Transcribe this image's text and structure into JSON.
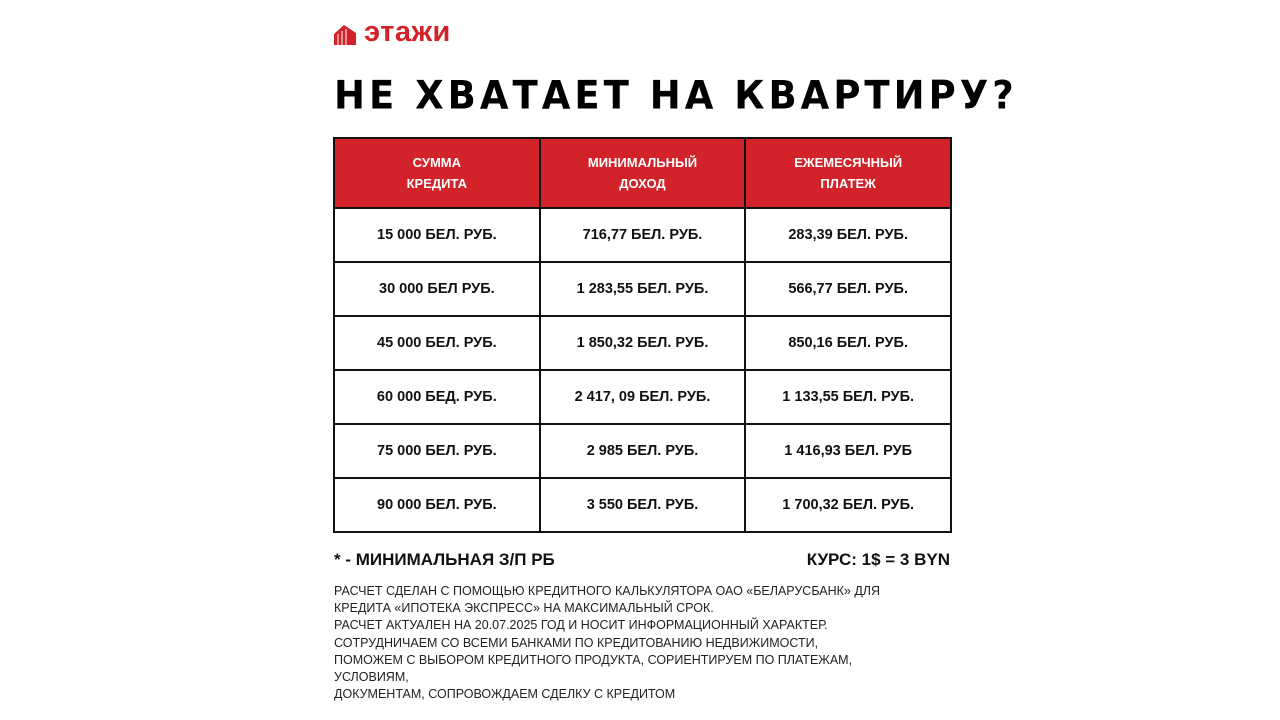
{
  "brand": {
    "name": "этажи",
    "color": "#d2232a",
    "icon": "building-logo-icon"
  },
  "title": "НЕ ХВАТАЕТ НА КВАРТИРУ?",
  "table": {
    "headers": [
      [
        "СУММА",
        "КРЕДИТА"
      ],
      [
        "МИНИМАЛЬНЫЙ",
        "ДОХОД"
      ],
      [
        "ЕЖЕМЕСЯЧНЫЙ",
        "ПЛАТЕЖ"
      ]
    ],
    "rows": [
      [
        "15 000 БЕЛ. РУБ.",
        "716,77 БЕЛ. РУБ.",
        "283,39 БЕЛ. РУБ."
      ],
      [
        "30 000 БЕЛ РУБ.",
        "1 283,55 БЕЛ. РУБ.",
        "566,77 БЕЛ. РУБ."
      ],
      [
        "45 000 БЕЛ. РУБ.",
        "1 850,32 БЕЛ. РУБ.",
        "850,16 БЕЛ. РУБ."
      ],
      [
        "60 000 БЕД. РУБ.",
        "2 417, 09 БЕЛ. РУБ.",
        "1 133,55 БЕЛ. РУБ."
      ],
      [
        "75 000 БЕЛ. РУБ.",
        "2 985 БЕЛ. РУБ.",
        "1 416,93 БЕЛ. РУБ"
      ],
      [
        "90 000 БЕЛ. РУБ.",
        "3 550 БЕЛ. РУБ.",
        "1 700,32 БЕЛ. РУБ."
      ]
    ]
  },
  "footnote": "* - МИНИМАЛЬНАЯ З/П РБ",
  "rate": "КУРС: 1$ = 3 BYN",
  "disclaimer": [
    "РАСЧЕТ СДЕЛАН С ПОМОЩЬЮ КРЕДИТНОГО КАЛЬКУЛЯТОРА ОАО «БЕЛАРУСБАНК» ДЛЯ",
    "КРЕДИТА «ИПОТЕКА ЭКСПРЕСС» НА МАКСИМАЛЬНЫЙ СРОК.",
    "РАСЧЕТ АКТУАЛЕН НА 20.07.2025 ГОД И НОСИТ ИНФОРМАЦИОННЫЙ ХАРАКТЕР.",
    "СОТРУДНИЧАЕМ СО ВСЕМИ БАНКАМИ ПО КРЕДИТОВАНИЮ НЕДВИЖИМОСТИ,",
    "ПОМОЖЕМ С ВЫБОРОМ КРЕДИТНОГО ПРОДУКТА, СОРИЕНТИРУЕМ ПО ПЛАТЕЖАМ,",
    "УСЛОВИЯМ,",
    "ДОКУМЕНТАМ, СОПРОВОЖДАЕМ СДЕЛКУ С КРЕДИТОМ"
  ]
}
